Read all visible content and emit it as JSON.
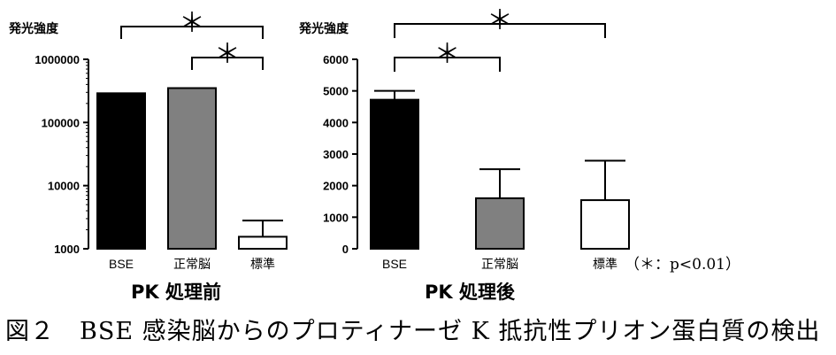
{
  "caption": "図２　BSE 感染脳からのプロティナーゼ K 抵抗性プリオン蛋白質の検出",
  "note": "（＊：p<0.01）",
  "chart_data": [
    {
      "type": "bar",
      "title": "PK 処理前",
      "ylabel": "発光強度",
      "yscale": "log",
      "ylim": [
        1000,
        1000000
      ],
      "yticks": [
        1000,
        10000,
        100000,
        1000000
      ],
      "ytick_labels": [
        "1000",
        "10000",
        "100000",
        "1000000"
      ],
      "categories": [
        "BSE",
        "正常脳",
        "標準"
      ],
      "values": [
        290000,
        350000,
        1550
      ],
      "errors": [
        0,
        0,
        1250
      ],
      "colors": [
        "#000000",
        "#808080",
        "#ffffff"
      ],
      "significance": [
        {
          "from": 0,
          "to": 2,
          "label": "＊"
        },
        {
          "from": 1,
          "to": 2,
          "label": "＊"
        }
      ]
    },
    {
      "type": "bar",
      "title": "PK 処理後",
      "ylabel": "発光強度",
      "yscale": "linear",
      "ylim": [
        0,
        6000
      ],
      "yticks": [
        0,
        1000,
        2000,
        3000,
        4000,
        5000,
        6000
      ],
      "ytick_labels": [
        "0",
        "1000",
        "2000",
        "3000",
        "4000",
        "5000",
        "6000"
      ],
      "categories": [
        "BSE",
        "正常脳",
        "標準"
      ],
      "values": [
        4720,
        1600,
        1540
      ],
      "errors": [
        280,
        920,
        1250
      ],
      "colors": [
        "#000000",
        "#808080",
        "#ffffff"
      ],
      "significance": [
        {
          "from": 0,
          "to": 2,
          "label": "＊"
        },
        {
          "from": 0,
          "to": 1,
          "label": "＊"
        }
      ]
    }
  ]
}
